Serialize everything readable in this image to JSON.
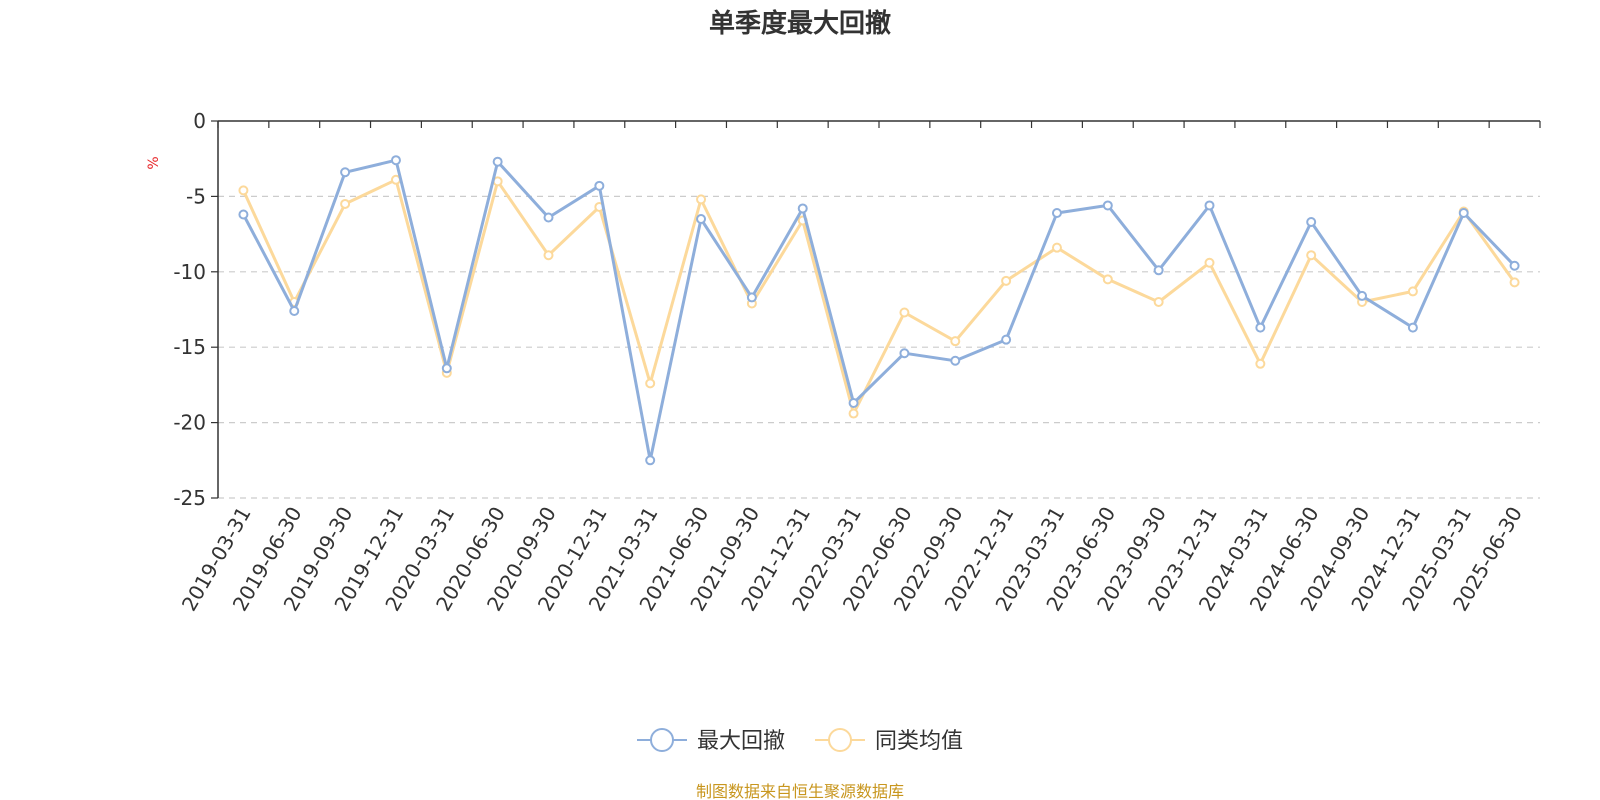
{
  "chart_data": {
    "type": "line",
    "title": "单季度最大回撤",
    "ylabel": "%",
    "ylim": [
      -25,
      0
    ],
    "yticks": [
      0,
      -5,
      -10,
      -15,
      -20,
      -25
    ],
    "ytick_labels": [
      "0",
      "-5",
      "-10",
      "-15",
      "-20",
      "-25"
    ],
    "grid": "horizontal-dashed",
    "legend_position": "bottom-center",
    "categories": [
      "2019-03-31",
      "2019-06-30",
      "2019-09-30",
      "2019-12-31",
      "2020-03-31",
      "2020-06-30",
      "2020-09-30",
      "2020-12-31",
      "2021-03-31",
      "2021-06-30",
      "2021-09-30",
      "2021-12-31",
      "2022-03-31",
      "2022-06-30",
      "2022-09-30",
      "2022-12-31",
      "2023-03-31",
      "2023-06-30",
      "2023-09-30",
      "2023-12-31",
      "2024-03-31",
      "2024-06-30",
      "2024-09-30",
      "2024-12-31",
      "2025-03-31",
      "2025-06-30"
    ],
    "series": [
      {
        "name": "最大回撤",
        "color": "#8eaedb",
        "values": [
          -6.2,
          -12.6,
          -3.4,
          -2.6,
          -16.4,
          -2.7,
          -6.4,
          -4.3,
          -22.5,
          -6.5,
          -11.7,
          -5.8,
          -18.7,
          -15.4,
          -15.9,
          -14.5,
          -6.1,
          -5.6,
          -9.9,
          -5.6,
          -13.7,
          -6.7,
          -11.6,
          -13.7,
          -6.1,
          -9.6
        ]
      },
      {
        "name": "同类均值",
        "color": "#fcd99b",
        "values": [
          -4.6,
          -12.0,
          -5.5,
          -3.9,
          -16.7,
          -4.0,
          -8.9,
          -5.7,
          -17.4,
          -5.2,
          -12.1,
          -6.6,
          -19.4,
          -12.7,
          -14.6,
          -10.6,
          -8.4,
          -10.5,
          -12.0,
          -9.4,
          -16.1,
          -8.9,
          -12.0,
          -11.3,
          -6.0,
          -10.7
        ]
      }
    ]
  },
  "source": "制图数据来自恒生聚源数据库"
}
